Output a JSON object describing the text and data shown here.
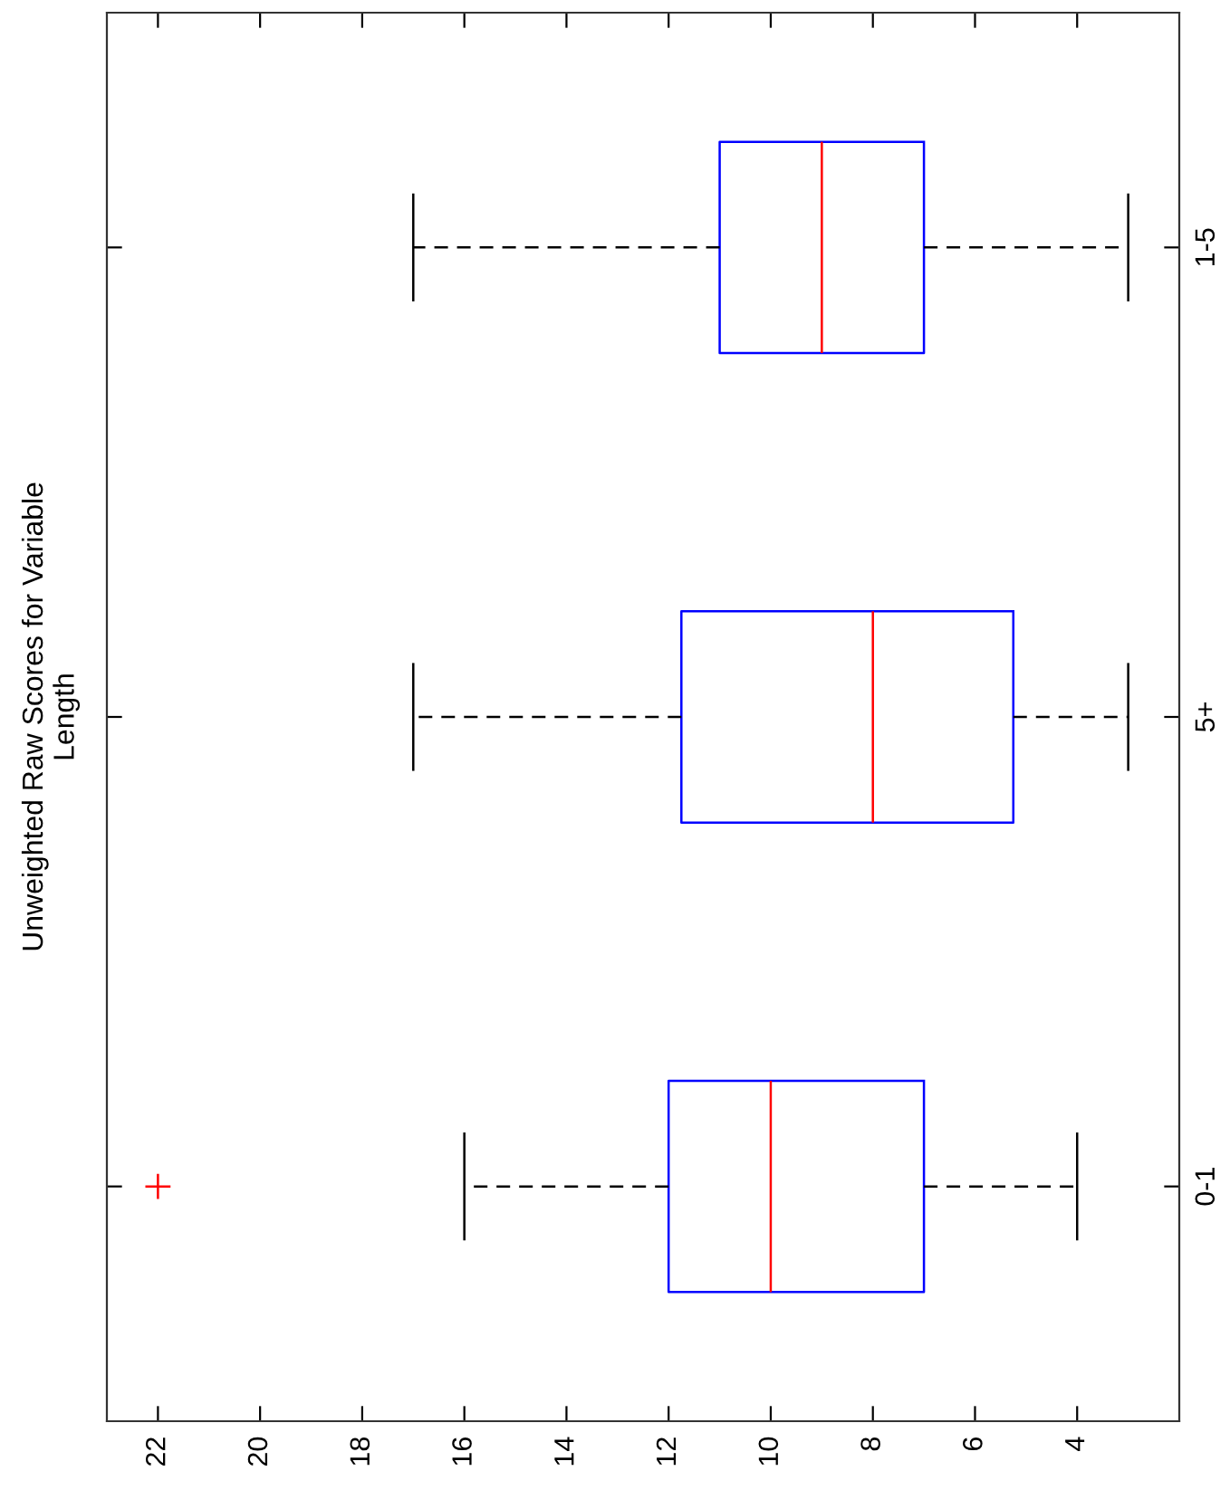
{
  "chart_data": {
    "type": "box",
    "title": "Unweighted Raw Scores for Variable\nLength",
    "orientation": "horizontal",
    "categories": [
      "1-5",
      "5+",
      "0-1"
    ],
    "series": [
      {
        "color": "#0000ff",
        "boxes": [
          {
            "low": 3,
            "q1": 7,
            "median": 9,
            "q3": 11,
            "high": 17
          },
          {
            "low": 3,
            "q1": 5.25,
            "median": 8,
            "q3": 11.75,
            "high": 17
          },
          {
            "low": 4,
            "q1": 7,
            "median": 10,
            "q3": 12,
            "high": 16,
            "outliers": [
              22
            ]
          }
        ]
      }
    ],
    "xlim": [
      23,
      2
    ],
    "xticks": [
      22,
      20,
      18,
      16,
      14,
      12,
      10,
      8,
      6,
      4
    ],
    "marker": "cross",
    "line_style": "dashed"
  }
}
